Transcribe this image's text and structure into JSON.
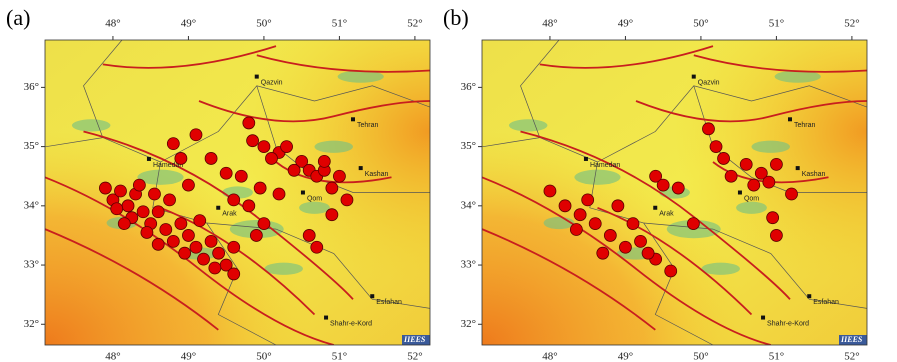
{
  "chart_data": [
    {
      "type": "scatter",
      "label": "(a)",
      "xlim": [
        47.1,
        52.2
      ],
      "ylim": [
        31.65,
        36.8
      ],
      "xticks": [
        {
          "value": 48,
          "label": "48°"
        },
        {
          "value": 49,
          "label": "49°"
        },
        {
          "value": 50,
          "label": "50°"
        },
        {
          "value": 51,
          "label": "51°"
        },
        {
          "value": 52,
          "label": "52°"
        }
      ],
      "yticks": [
        {
          "value": 32,
          "label": "32°"
        },
        {
          "value": 33,
          "label": "33°"
        },
        {
          "value": 34,
          "label": "34°"
        },
        {
          "value": 35,
          "label": "35°"
        },
        {
          "value": 36,
          "label": "36°"
        }
      ],
      "places": [
        "Qazvin",
        "Tehran",
        "Hamedan",
        "Arak",
        "Qom",
        "Kashan",
        "Esfahan",
        "Shahr-e-Kord"
      ],
      "credit": "IIEES",
      "color": "#e00000",
      "x": [
        47.9,
        48.0,
        48.1,
        48.2,
        48.05,
        48.3,
        48.4,
        48.25,
        48.5,
        48.6,
        48.45,
        48.7,
        48.8,
        48.6,
        48.9,
        49.0,
        49.1,
        48.95,
        49.2,
        49.3,
        49.4,
        49.5,
        49.35,
        49.6,
        48.35,
        48.75,
        48.15,
        49.15,
        49.6,
        48.55,
        49.0,
        49.3,
        49.1,
        49.5,
        49.7,
        49.95,
        49.8,
        50.0,
        49.9,
        49.6,
        48.9,
        48.8,
        49.8,
        49.85,
        50.0,
        50.2,
        50.3,
        50.1,
        50.5,
        50.6,
        50.7,
        50.8,
        51.0,
        50.9,
        51.1,
        50.9,
        50.6,
        50.7,
        50.4,
        50.8,
        50.2
      ],
      "values": [
        34.3,
        34.1,
        34.25,
        34.0,
        33.95,
        34.2,
        33.9,
        33.8,
        33.7,
        33.9,
        33.55,
        33.6,
        33.4,
        33.35,
        33.7,
        33.5,
        33.3,
        33.2,
        33.1,
        33.4,
        33.2,
        33.0,
        32.95,
        32.85,
        34.35,
        34.1,
        33.7,
        33.75,
        33.3,
        34.2,
        34.35,
        34.8,
        35.2,
        34.55,
        34.5,
        34.3,
        34.0,
        33.7,
        33.5,
        34.1,
        34.8,
        35.05,
        35.4,
        35.1,
        35.0,
        34.9,
        35.0,
        34.8,
        34.75,
        34.6,
        34.5,
        34.6,
        34.5,
        34.3,
        34.1,
        33.85,
        33.5,
        33.3,
        34.6,
        34.75,
        34.2
      ]
    },
    {
      "type": "scatter",
      "label": "(b)",
      "xlim": [
        47.1,
        52.2
      ],
      "ylim": [
        31.65,
        36.8
      ],
      "xticks": [
        {
          "value": 48,
          "label": "48°"
        },
        {
          "value": 49,
          "label": "49°"
        },
        {
          "value": 50,
          "label": "50°"
        },
        {
          "value": 51,
          "label": "51°"
        },
        {
          "value": 52,
          "label": "52°"
        }
      ],
      "yticks": [
        {
          "value": 32,
          "label": "32°"
        },
        {
          "value": 33,
          "label": "33°"
        },
        {
          "value": 34,
          "label": "34°"
        },
        {
          "value": 35,
          "label": "35°"
        },
        {
          "value": 36,
          "label": "36°"
        }
      ],
      "places": [
        "Qazvin",
        "Tehran",
        "Hamedan",
        "Arak",
        "Qom",
        "Kashan",
        "Esfahan",
        "Shahr-e-Kord"
      ],
      "credit": "IIEES",
      "color": "#e00000",
      "x": [
        48.0,
        48.2,
        48.4,
        48.6,
        48.8,
        49.0,
        49.2,
        49.4,
        48.5,
        48.35,
        48.7,
        49.6,
        49.1,
        48.9,
        49.3,
        49.4,
        49.5,
        49.7,
        49.9,
        50.1,
        50.2,
        50.3,
        50.6,
        50.8,
        50.9,
        51.0,
        50.95,
        51.0,
        50.7,
        51.2,
        50.4
      ],
      "values": [
        34.25,
        34.0,
        33.85,
        33.7,
        33.5,
        33.3,
        33.4,
        33.1,
        34.1,
        33.6,
        33.2,
        32.9,
        33.7,
        34.0,
        33.2,
        34.5,
        34.35,
        34.3,
        33.7,
        35.3,
        35.0,
        34.8,
        34.7,
        34.55,
        34.4,
        34.7,
        33.8,
        33.5,
        34.35,
        34.2,
        34.5
      ]
    }
  ]
}
